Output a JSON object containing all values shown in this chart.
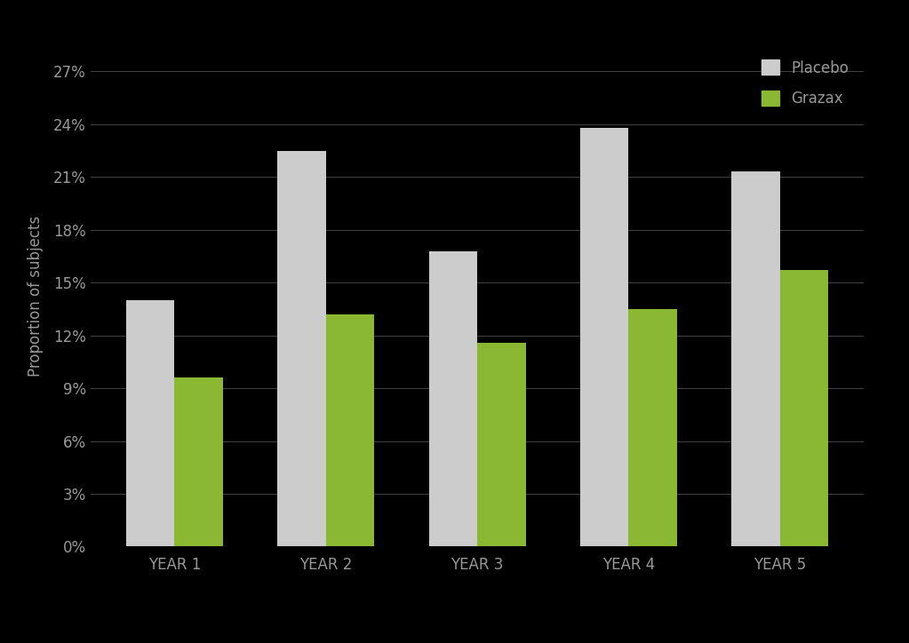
{
  "categories": [
    "YEAR 1",
    "YEAR 2",
    "YEAR 3",
    "YEAR 4",
    "YEAR 5"
  ],
  "placebo_values": [
    14.0,
    22.5,
    16.8,
    23.8,
    21.3
  ],
  "grazax_values": [
    9.6,
    13.2,
    11.6,
    13.5,
    15.7
  ],
  "placebo_color": "#cccccc",
  "grazax_color": "#8ab832",
  "background_color": "#000000",
  "text_color": "#999999",
  "grid_color": "#444444",
  "ylabel": "Proportion of subjects",
  "yticks": [
    0,
    3,
    6,
    9,
    12,
    15,
    18,
    21,
    24,
    27
  ],
  "ytick_labels": [
    "0%",
    "3%",
    "6%",
    "9%",
    "12%",
    "15%",
    "18%",
    "21%",
    "24%",
    "27%"
  ],
  "ylim": [
    0,
    28.5
  ],
  "legend_labels": [
    "Placebo",
    "Grazax"
  ],
  "bar_width": 0.32,
  "figsize": [
    10.23,
    7.24
  ],
  "dpi": 100
}
